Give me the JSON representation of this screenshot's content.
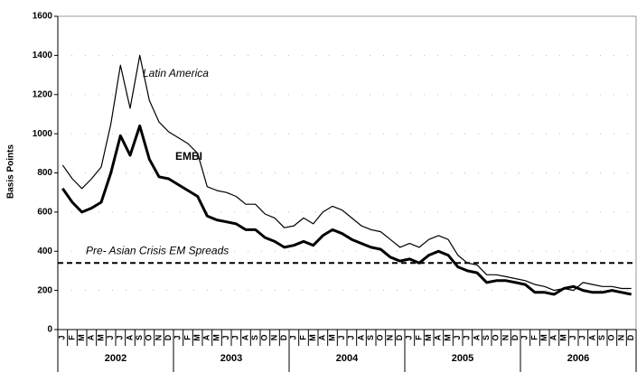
{
  "chart_data": {
    "type": "line",
    "y_label": "Basis Points",
    "categories": [
      "J",
      "F",
      "M",
      "A",
      "M",
      "J",
      "J",
      "A",
      "S",
      "O",
      "N",
      "D",
      "J",
      "F",
      "M",
      "A",
      "M",
      "J",
      "J",
      "A",
      "S",
      "O",
      "N",
      "D",
      "J",
      "F",
      "M",
      "A",
      "M",
      "J",
      "J",
      "A",
      "S",
      "O",
      "N",
      "D",
      "J",
      "F",
      "M",
      "A",
      "M",
      "J",
      "J",
      "A",
      "S",
      "O",
      "N",
      "D",
      "J",
      "F",
      "M",
      "A",
      "M",
      "J",
      "J",
      "A",
      "S",
      "O",
      "N",
      "D"
    ],
    "years": [
      "2002",
      "2003",
      "2004",
      "2005",
      "2006"
    ],
    "series": [
      {
        "name": "Latin America",
        "color": "#000000",
        "line_width": 1.2,
        "values": [
          840,
          770,
          720,
          770,
          830,
          1050,
          1350,
          1130,
          1400,
          1170,
          1060,
          1010,
          980,
          950,
          900,
          730,
          710,
          700,
          680,
          640,
          640,
          590,
          570,
          520,
          530,
          570,
          540,
          600,
          630,
          610,
          570,
          530,
          510,
          500,
          460,
          420,
          440,
          420,
          460,
          480,
          460,
          380,
          340,
          330,
          280,
          280,
          270,
          260,
          250,
          230,
          220,
          200,
          210,
          200,
          240,
          230,
          220,
          220,
          210,
          210
        ]
      },
      {
        "name": "EMBI",
        "color": "#000000",
        "line_width": 3,
        "values": [
          720,
          650,
          600,
          620,
          650,
          800,
          990,
          890,
          1040,
          870,
          780,
          770,
          740,
          710,
          680,
          580,
          560,
          550,
          540,
          510,
          510,
          470,
          450,
          420,
          430,
          450,
          430,
          480,
          510,
          490,
          460,
          440,
          420,
          410,
          370,
          350,
          360,
          340,
          380,
          400,
          380,
          320,
          300,
          290,
          240,
          250,
          250,
          240,
          230,
          190,
          190,
          180,
          210,
          220,
          200,
          190,
          190,
          200,
          190,
          180
        ]
      }
    ],
    "reference_line": {
      "value": 340,
      "label": "Pre- Asian Crisis EM Spreads"
    },
    "ylim": [
      0,
      1600
    ],
    "yticks": [
      0,
      200,
      400,
      600,
      800,
      1000,
      1200,
      1400,
      1600
    ],
    "grid": true
  }
}
